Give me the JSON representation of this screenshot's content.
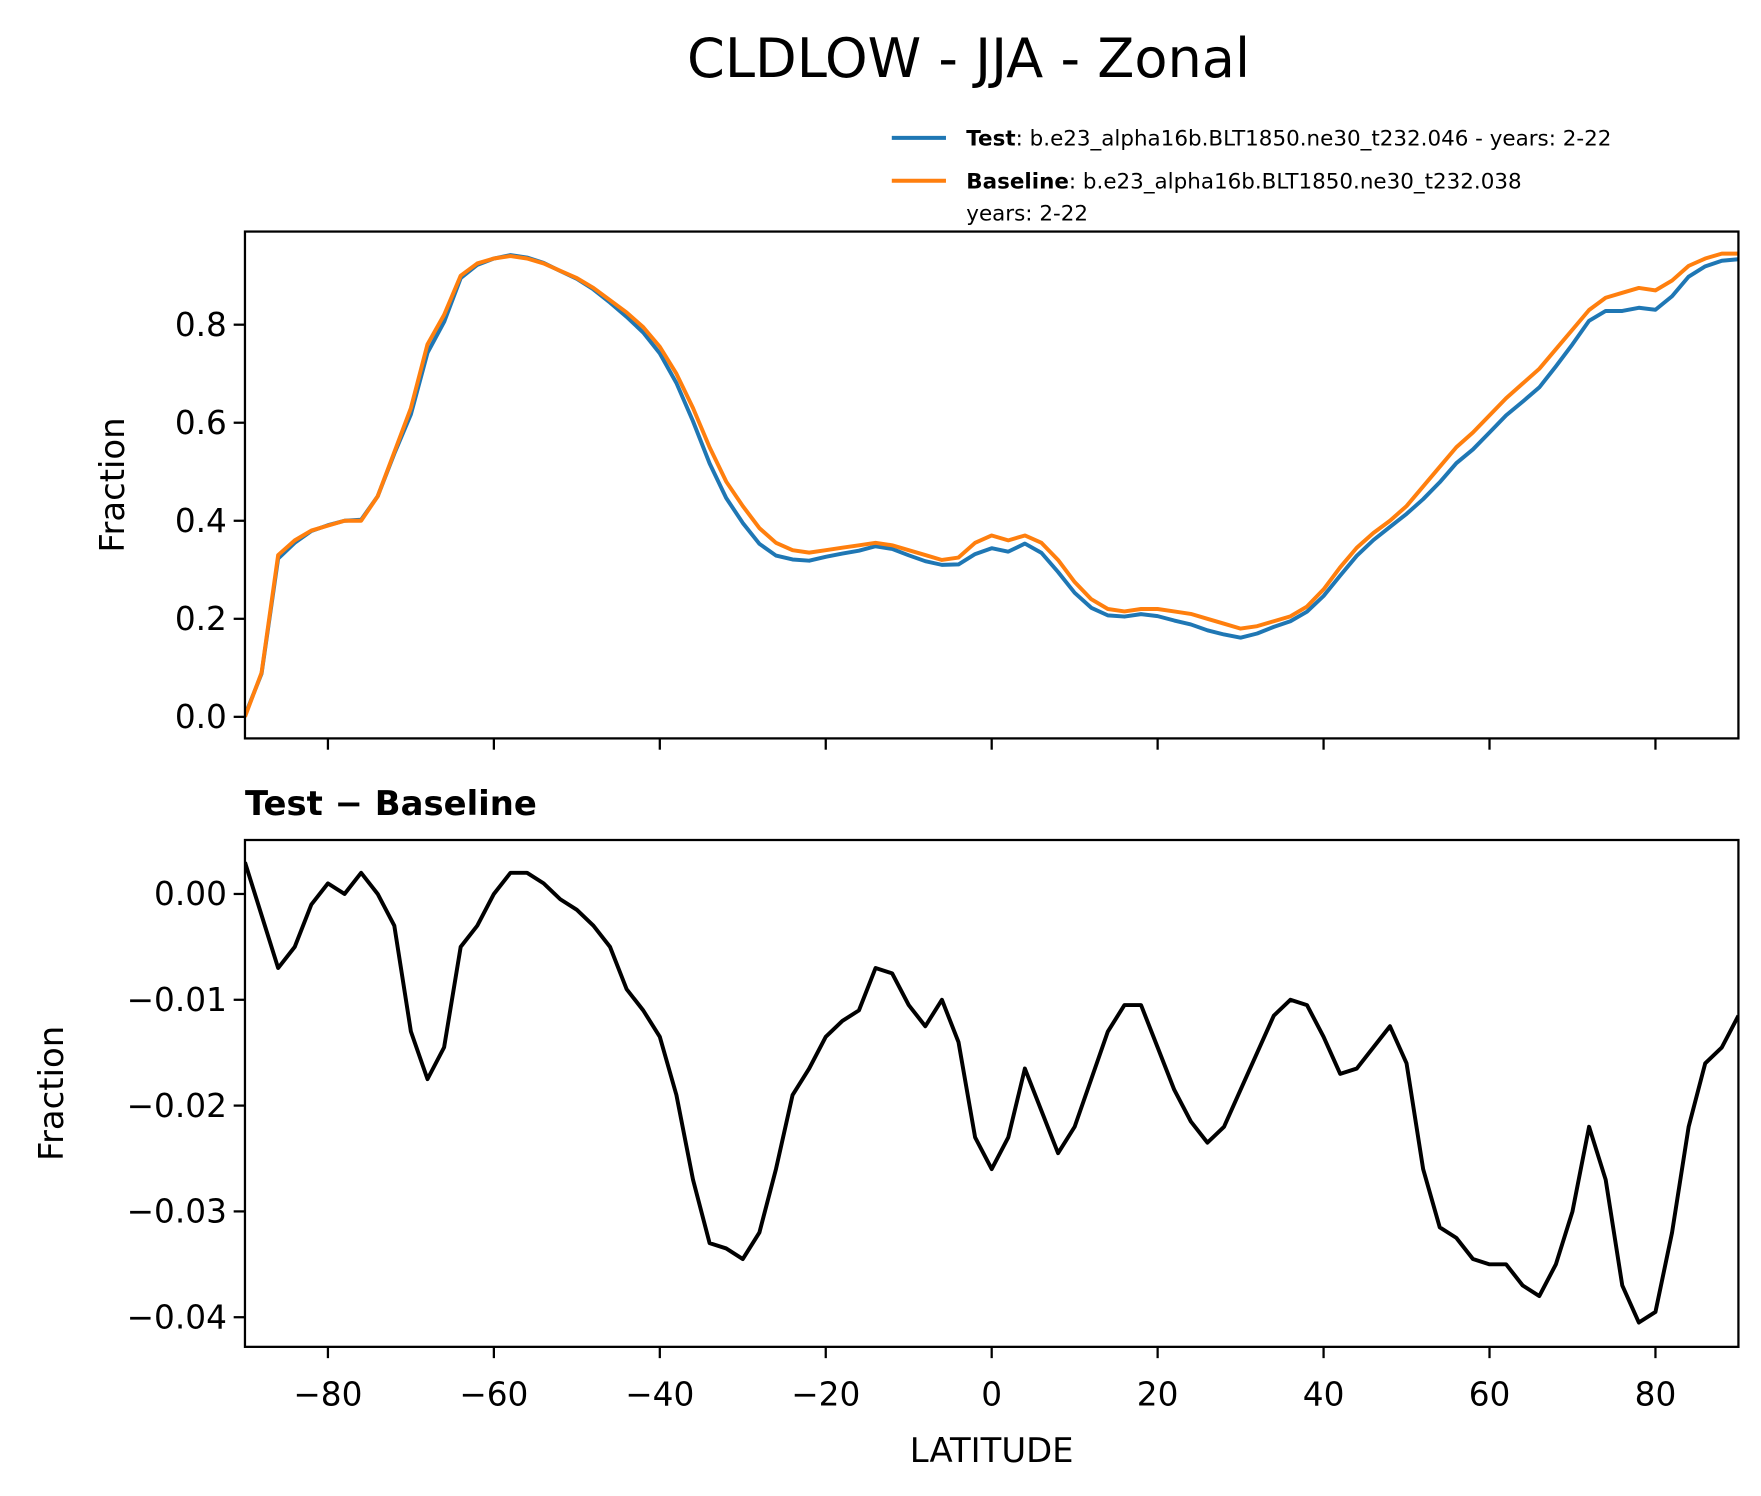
{
  "title": "CLDLOW - JJA - Zonal",
  "chart_data": [
    {
      "type": "line",
      "ylabel": "Fraction",
      "x": [
        -90,
        -88,
        -86,
        -84,
        -82,
        -80,
        -78,
        -76,
        -74,
        -72,
        -70,
        -68,
        -66,
        -64,
        -62,
        -60,
        -58,
        -56,
        -54,
        -52,
        -50,
        -48,
        -46,
        -44,
        -42,
        -40,
        -38,
        -36,
        -34,
        -32,
        -30,
        -28,
        -26,
        -24,
        -22,
        -20,
        -18,
        -16,
        -14,
        -12,
        -10,
        -8,
        -6,
        -4,
        -2,
        0,
        2,
        4,
        6,
        8,
        10,
        12,
        14,
        16,
        18,
        20,
        22,
        24,
        26,
        28,
        30,
        32,
        34,
        36,
        38,
        40,
        42,
        44,
        46,
        48,
        50,
        52,
        54,
        56,
        58,
        60,
        62,
        64,
        66,
        68,
        70,
        72,
        74,
        76,
        78,
        80,
        82,
        84,
        86,
        88,
        90
      ],
      "series": [
        {
          "name": "Test",
          "description": [
            ": b.e23_alpha16b.BLT1850.ne30_t232.046 - years: 2-22"
          ],
          "color": "#1f77b4",
          "values": [
            0.003,
            0.088,
            0.323,
            0.355,
            0.379,
            0.391,
            0.4,
            0.402,
            0.45,
            0.537,
            0.617,
            0.7425,
            0.8055,
            0.895,
            0.922,
            0.935,
            0.942,
            0.937,
            0.926,
            0.9095,
            0.8935,
            0.872,
            0.845,
            0.816,
            0.784,
            0.7415,
            0.681,
            0.603,
            0.517,
            0.4465,
            0.3955,
            0.353,
            0.329,
            0.321,
            0.3185,
            0.3265,
            0.333,
            0.339,
            0.348,
            0.3425,
            0.3295,
            0.3175,
            0.31,
            0.311,
            0.332,
            0.344,
            0.337,
            0.3535,
            0.3345,
            0.2955,
            0.253,
            0.2225,
            0.207,
            0.2045,
            0.2095,
            0.2055,
            0.1965,
            0.1885,
            0.1765,
            0.168,
            0.1615,
            0.17,
            0.1835,
            0.195,
            0.2145,
            0.2465,
            0.288,
            0.3285,
            0.3605,
            0.3875,
            0.414,
            0.444,
            0.4785,
            0.5175,
            0.5455,
            0.58,
            0.615,
            0.643,
            0.672,
            0.715,
            0.76,
            0.808,
            0.828,
            0.828,
            0.8345,
            0.8305,
            0.858,
            0.898,
            0.919,
            0.9305,
            0.9335
          ]
        },
        {
          "name": "Baseline",
          "description": [
            ": b.e23_alpha16b.BLT1850.ne30_t232.038",
            "years: 2-22"
          ],
          "color": "#ff7f0e",
          "values": [
            0.0,
            0.09,
            0.33,
            0.36,
            0.38,
            0.39,
            0.4,
            0.4,
            0.45,
            0.54,
            0.63,
            0.76,
            0.82,
            0.9,
            0.925,
            0.935,
            0.94,
            0.935,
            0.925,
            0.91,
            0.895,
            0.875,
            0.85,
            0.825,
            0.795,
            0.755,
            0.7,
            0.63,
            0.55,
            0.48,
            0.43,
            0.385,
            0.355,
            0.34,
            0.335,
            0.34,
            0.345,
            0.35,
            0.355,
            0.35,
            0.34,
            0.33,
            0.32,
            0.325,
            0.355,
            0.37,
            0.36,
            0.37,
            0.355,
            0.32,
            0.275,
            0.24,
            0.22,
            0.215,
            0.22,
            0.22,
            0.215,
            0.21,
            0.2,
            0.19,
            0.18,
            0.185,
            0.195,
            0.205,
            0.225,
            0.26,
            0.305,
            0.345,
            0.375,
            0.4,
            0.43,
            0.47,
            0.51,
            0.55,
            0.58,
            0.615,
            0.65,
            0.68,
            0.71,
            0.75,
            0.79,
            0.83,
            0.855,
            0.865,
            0.875,
            0.87,
            0.89,
            0.92,
            0.935,
            0.945,
            0.945
          ]
        }
      ],
      "xlim": [
        -90,
        90
      ],
      "xticks": [
        -80,
        -60,
        -40,
        -20,
        0,
        20,
        40,
        60,
        80
      ],
      "show_xtick_labels": false,
      "ylim": [
        -0.044,
        0.99
      ],
      "yticks": [
        {
          "value": 0,
          "label": "0.0"
        },
        0.2,
        0.4,
        0.6,
        0.8
      ],
      "legend": "upper right outside"
    },
    {
      "type": "line",
      "title": "Test − Baseline",
      "xlabel": "LATITUDE",
      "ylabel": "Fraction",
      "x": [
        -90,
        -88,
        -86,
        -84,
        -82,
        -80,
        -78,
        -76,
        -74,
        -72,
        -70,
        -68,
        -66,
        -64,
        -62,
        -60,
        -58,
        -56,
        -54,
        -52,
        -50,
        -48,
        -46,
        -44,
        -42,
        -40,
        -38,
        -36,
        -34,
        -32,
        -30,
        -28,
        -26,
        -24,
        -22,
        -20,
        -18,
        -16,
        -14,
        -12,
        -10,
        -8,
        -6,
        -4,
        -2,
        0,
        2,
        4,
        6,
        8,
        10,
        12,
        14,
        16,
        18,
        20,
        22,
        24,
        26,
        28,
        30,
        32,
        34,
        36,
        38,
        40,
        42,
        44,
        46,
        48,
        50,
        52,
        54,
        56,
        58,
        60,
        62,
        64,
        66,
        68,
        70,
        72,
        74,
        76,
        78,
        80,
        82,
        84,
        86,
        88,
        90
      ],
      "series": [
        {
          "color": "#000000",
          "values": [
            0.003,
            -0.002,
            -0.007,
            -0.005,
            -0.001,
            0.001,
            0.0,
            0.002,
            0.0,
            -0.003,
            -0.013,
            -0.0175,
            -0.0145,
            -0.005,
            -0.003,
            0.0,
            0.002,
            0.002,
            0.001,
            -0.0005,
            -0.0015,
            -0.003,
            -0.005,
            -0.009,
            -0.011,
            -0.0135,
            -0.019,
            -0.027,
            -0.033,
            -0.0335,
            -0.0345,
            -0.032,
            -0.026,
            -0.019,
            -0.0165,
            -0.0135,
            -0.012,
            -0.011,
            -0.007,
            -0.0075,
            -0.0105,
            -0.0125,
            -0.01,
            -0.014,
            -0.023,
            -0.026,
            -0.023,
            -0.0165,
            -0.0205,
            -0.0245,
            -0.022,
            -0.0175,
            -0.013,
            -0.0105,
            -0.0105,
            -0.0145,
            -0.0185,
            -0.0215,
            -0.0235,
            -0.022,
            -0.0185,
            -0.015,
            -0.0115,
            -0.01,
            -0.0105,
            -0.0135,
            -0.017,
            -0.0165,
            -0.0145,
            -0.0125,
            -0.016,
            -0.026,
            -0.0315,
            -0.0325,
            -0.0345,
            -0.035,
            -0.035,
            -0.037,
            -0.038,
            -0.035,
            -0.03,
            -0.022,
            -0.027,
            -0.037,
            -0.0405,
            -0.0395,
            -0.032,
            -0.022,
            -0.016,
            -0.0145,
            -0.0115
          ]
        }
      ],
      "xlim": [
        -90,
        90
      ],
      "xticks": [
        {
          "value": -80,
          "label": "−80"
        },
        {
          "value": -60,
          "label": "−60"
        },
        {
          "value": -40,
          "label": "−40"
        },
        {
          "value": -20,
          "label": "−20"
        },
        0,
        20,
        40,
        60,
        80
      ],
      "show_xtick_labels": true,
      "ylim": [
        -0.0428,
        0.0051
      ],
      "yticks": [
        {
          "value": 0,
          "label": "0.00"
        },
        {
          "value": -0.01,
          "label": "−0.01"
        },
        {
          "value": -0.02,
          "label": "−0.02"
        },
        {
          "value": -0.03,
          "label": "−0.03"
        },
        {
          "value": -0.04,
          "label": "−0.04"
        }
      ]
    }
  ]
}
